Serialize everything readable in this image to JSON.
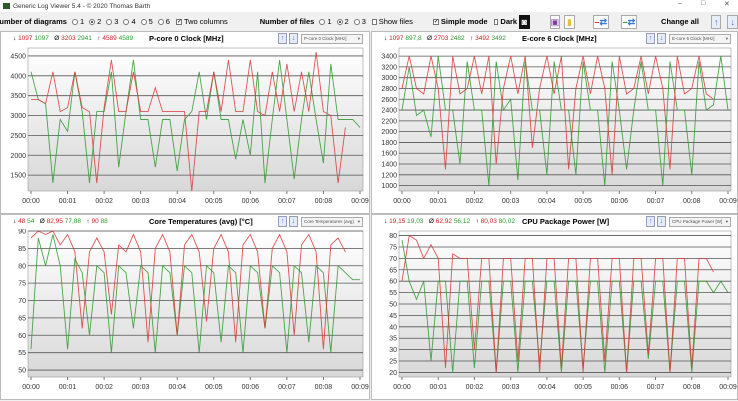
{
  "window": {
    "title": "Generic Log Viewer 5.4 - © 2020 Thomas Barth",
    "controls": [
      "–",
      "□",
      "✕"
    ]
  },
  "toolbar": {
    "diagrams_label": "Number of diagrams",
    "diagram_options": [
      "1",
      "2",
      "3",
      "4",
      "5",
      "6"
    ],
    "diagrams_selected": "2",
    "two_columns": "Two columns",
    "two_columns_checked": true,
    "files_label": "Number of files",
    "file_options": [
      "1",
      "2",
      "3"
    ],
    "files_selected": "2",
    "show_files": "Show files",
    "show_files_checked": false,
    "simple_mode": "Simple mode",
    "simple_mode_checked": true,
    "dark": "Dark",
    "dark_checked": false,
    "change_all": "Change all"
  },
  "colors": {
    "file1": "#d83838",
    "file2": "#2e962e"
  },
  "panels": [
    {
      "title": "P-core 0 Clock [MHz]",
      "select": "P-core 0 Clock [MHz]",
      "min": [
        "1097",
        "1097"
      ],
      "avg": [
        "3203",
        "2941"
      ],
      "max": [
        "4589",
        "4589"
      ]
    },
    {
      "title": "E-core 6 Clock [MHz]",
      "select": "E-core 6 Clock [MHz]",
      "min": [
        "1097",
        "897,8"
      ],
      "avg": [
        "2703",
        "2482"
      ],
      "max": [
        "3492",
        "3492"
      ]
    },
    {
      "title": "Core Temperatures (avg) [°C]",
      "select": "Core Temperatures (avg)",
      "min": [
        "48",
        "54"
      ],
      "avg": [
        "82,95",
        "77,88"
      ],
      "max": [
        "90",
        "88"
      ]
    },
    {
      "title": "CPU Package Power [W]",
      "select": "CPU Package Power [W]",
      "min": [
        "19,15",
        "19,03"
      ],
      "avg": [
        "62,92",
        "56,12"
      ],
      "max": [
        "80,03",
        "80,02"
      ]
    }
  ],
  "chart_data": [
    {
      "type": "line",
      "title": "P-core 0 Clock [MHz]",
      "ylim": [
        1100,
        4700
      ],
      "yticks": [
        1500,
        2000,
        2500,
        3000,
        3500,
        4000,
        4500
      ],
      "xticks": [
        "00:00",
        "00:01",
        "00:02",
        "00:03",
        "00:04",
        "00:05",
        "00:06",
        "00:07",
        "00:08",
        "00:09"
      ],
      "x_step_s": 12,
      "grid": "horizontal",
      "series": [
        {
          "values": [
            3400,
            3400,
            3300,
            4100,
            3100,
            3200,
            4100,
            3200,
            3100,
            1300,
            3200,
            4400,
            3100,
            3100,
            4100,
            3100,
            3100,
            3700,
            3100,
            3100,
            3100,
            3100,
            1100,
            3100,
            3100,
            4100,
            3100,
            4400,
            3100,
            3100,
            4400,
            3100,
            3000,
            4100,
            3100,
            4300,
            3100,
            4100,
            3100,
            4600,
            3100,
            3000,
            1300,
            2700
          ]
        },
        {
          "values": [
            4100,
            3400,
            3300,
            1300,
            2900,
            2600,
            4100,
            3100,
            1300,
            3100,
            3100,
            4100,
            1700,
            3100,
            4400,
            2900,
            2900,
            1700,
            2900,
            2900,
            1600,
            2900,
            3100,
            4100,
            2900,
            4100,
            2900,
            2900,
            1900,
            2900,
            2000,
            4100,
            1300,
            2900,
            4400,
            2900,
            1400,
            2900,
            4100,
            2900,
            1800,
            4300,
            2900,
            2900,
            2900,
            2700
          ]
        }
      ]
    },
    {
      "type": "line",
      "title": "E-core 6 Clock [MHz]",
      "ylim": [
        900,
        3550
      ],
      "yticks": [
        1000,
        1200,
        1400,
        1600,
        1800,
        2000,
        2200,
        2400,
        2600,
        2800,
        3000,
        3200,
        3400
      ],
      "xticks": [
        "00:00",
        "00:01",
        "00:02",
        "00:03",
        "00:04",
        "00:05",
        "00:06",
        "00:07",
        "00:08",
        "00:09"
      ],
      "x_step_s": 12,
      "grid": "horizontal",
      "series": [
        {
          "values": [
            2800,
            3400,
            2800,
            2700,
            3400,
            2800,
            1300,
            3400,
            2700,
            2800,
            3400,
            2700,
            3400,
            1400,
            2800,
            3400,
            2700,
            3400,
            1700,
            2800,
            3400,
            2700,
            3400,
            1300,
            2800,
            3400,
            2700,
            3400,
            2800,
            1200,
            3400,
            2700,
            2800,
            3400,
            2700,
            3400,
            2800,
            1300,
            3400,
            2700,
            2800,
            3400,
            2700,
            2600
          ]
        },
        {
          "values": [
            2400,
            3200,
            2300,
            2400,
            1900,
            3400,
            2400,
            2400,
            1400,
            3300,
            2400,
            2400,
            1000,
            3300,
            2400,
            2600,
            1100,
            3300,
            2400,
            2400,
            1200,
            3300,
            2400,
            2400,
            1200,
            3300,
            2400,
            2400,
            1000,
            3300,
            2400,
            1300,
            2400,
            3300,
            2400,
            2400,
            1000,
            3300,
            2400,
            2400,
            1200,
            3300,
            2400,
            2500,
            3400,
            2400
          ]
        }
      ]
    },
    {
      "type": "line",
      "title": "Core Temperatures (avg) [°C]",
      "ylim": [
        48,
        90
      ],
      "yticks": [
        50,
        55,
        60,
        65,
        70,
        75,
        80,
        85,
        90
      ],
      "xticks": [
        "00:00",
        "00:01",
        "00:02",
        "00:03",
        "00:04",
        "00:05",
        "00:06",
        "00:07",
        "00:08",
        "00:09"
      ],
      "x_step_s": 12,
      "grid": "horizontal",
      "series": [
        {
          "values": [
            88,
            90,
            89,
            90,
            86,
            89,
            84,
            62,
            84,
            88,
            84,
            66,
            86,
            84,
            89,
            84,
            58,
            85,
            89,
            84,
            60,
            86,
            89,
            84,
            64,
            85,
            89,
            84,
            58,
            86,
            89,
            84,
            62,
            85,
            89,
            84,
            60,
            86,
            89,
            84,
            56,
            86,
            88,
            84
          ]
        },
        {
          "values": [
            56,
            88,
            80,
            89,
            80,
            56,
            82,
            78,
            60,
            80,
            78,
            55,
            80,
            78,
            62,
            80,
            78,
            55,
            80,
            78,
            60,
            80,
            78,
            55,
            80,
            78,
            58,
            80,
            78,
            55,
            80,
            78,
            62,
            80,
            78,
            55,
            80,
            78,
            58,
            80,
            78,
            55,
            80,
            78,
            76,
            76
          ]
        }
      ]
    },
    {
      "type": "line",
      "title": "CPU Package Power [W]",
      "ylim": [
        18,
        82
      ],
      "yticks": [
        20,
        25,
        30,
        35,
        40,
        45,
        50,
        55,
        60,
        65,
        70,
        75,
        80
      ],
      "xticks": [
        "00:00",
        "00:01",
        "00:02",
        "00:03",
        "00:04",
        "00:05",
        "00:06",
        "00:07",
        "00:08",
        "00:09"
      ],
      "x_step_s": 12,
      "grid": "horizontal",
      "series": [
        {
          "values": [
            60,
            80,
            78,
            70,
            76,
            70,
            22,
            72,
            70,
            70,
            30,
            70,
            70,
            20,
            70,
            70,
            25,
            70,
            70,
            20,
            70,
            70,
            22,
            70,
            70,
            20,
            70,
            70,
            25,
            70,
            70,
            20,
            70,
            70,
            28,
            70,
            70,
            20,
            70,
            70,
            22,
            70,
            70,
            64
          ]
        },
        {
          "values": [
            78,
            60,
            52,
            60,
            25,
            60,
            60,
            20,
            60,
            60,
            22,
            60,
            60,
            20,
            60,
            60,
            20,
            60,
            60,
            24,
            60,
            60,
            20,
            60,
            60,
            22,
            60,
            60,
            20,
            60,
            60,
            20,
            60,
            60,
            26,
            60,
            60,
            20,
            60,
            60,
            20,
            60,
            60,
            55,
            60,
            55
          ]
        }
      ]
    }
  ]
}
